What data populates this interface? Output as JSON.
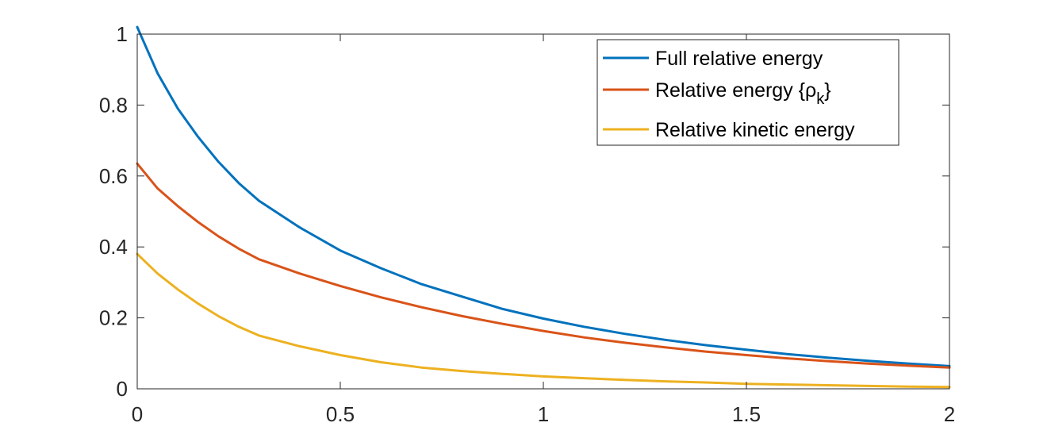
{
  "chart_data": {
    "type": "line",
    "title": "",
    "xlabel": "",
    "ylabel": "",
    "xlim": [
      0,
      2
    ],
    "ylim": [
      0,
      1
    ],
    "x_ticks": [
      0,
      0.5,
      1,
      1.5,
      2
    ],
    "x_tick_labels": [
      "0",
      "0.5",
      "1",
      "1.5",
      "2"
    ],
    "y_ticks": [
      0,
      0.2,
      0.4,
      0.6,
      0.8,
      1
    ],
    "y_tick_labels": [
      "0",
      "0.2",
      "0.4",
      "0.6",
      "0.8",
      "1"
    ],
    "grid": false,
    "legend_position": "top-right",
    "x": [
      0,
      0.05,
      0.1,
      0.15,
      0.2,
      0.25,
      0.3,
      0.4,
      0.5,
      0.6,
      0.7,
      0.8,
      0.9,
      1.0,
      1.1,
      1.2,
      1.3,
      1.4,
      1.5,
      1.6,
      1.7,
      1.8,
      1.9,
      2.0
    ],
    "series": [
      {
        "name": "Full relative energy",
        "legend_main": "Full relative energy",
        "legend_sub": "",
        "legend_close": "",
        "color": "#0072BD",
        "values": [
          1.02,
          0.89,
          0.79,
          0.71,
          0.64,
          0.58,
          0.53,
          0.455,
          0.39,
          0.34,
          0.295,
          0.26,
          0.225,
          0.198,
          0.175,
          0.155,
          0.138,
          0.123,
          0.11,
          0.098,
          0.088,
          0.079,
          0.071,
          0.064
        ]
      },
      {
        "name": "Relative energy {ρ_k}",
        "legend_main": "Relative energy {ρ",
        "legend_sub": "k",
        "legend_close": "}",
        "color": "#D95319",
        "values": [
          0.635,
          0.565,
          0.515,
          0.47,
          0.43,
          0.395,
          0.365,
          0.325,
          0.29,
          0.258,
          0.23,
          0.205,
          0.183,
          0.163,
          0.145,
          0.13,
          0.117,
          0.105,
          0.095,
          0.086,
          0.078,
          0.071,
          0.065,
          0.06
        ]
      },
      {
        "name": "Relative kinetic energy",
        "legend_main": "Relative kinetic energy",
        "legend_sub": "",
        "legend_close": "",
        "color": "#EDB120",
        "values": [
          0.38,
          0.325,
          0.28,
          0.24,
          0.205,
          0.175,
          0.15,
          0.12,
          0.095,
          0.075,
          0.06,
          0.05,
          0.042,
          0.035,
          0.03,
          0.025,
          0.021,
          0.018,
          0.014,
          0.012,
          0.01,
          0.008,
          0.006,
          0.005
        ]
      }
    ]
  }
}
